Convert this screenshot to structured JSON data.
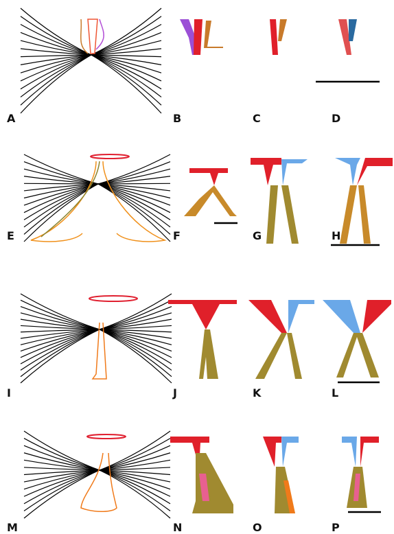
{
  "panels": [
    {
      "label": "A"
    },
    {
      "label": "B"
    },
    {
      "label": "C"
    },
    {
      "label": "D"
    },
    {
      "label": "E"
    },
    {
      "label": "F"
    },
    {
      "label": "G"
    },
    {
      "label": "H"
    },
    {
      "label": "I"
    },
    {
      "label": "J"
    },
    {
      "label": "K"
    },
    {
      "label": "L"
    },
    {
      "label": "M"
    },
    {
      "label": "N"
    },
    {
      "label": "O"
    },
    {
      "label": "P"
    }
  ]
}
